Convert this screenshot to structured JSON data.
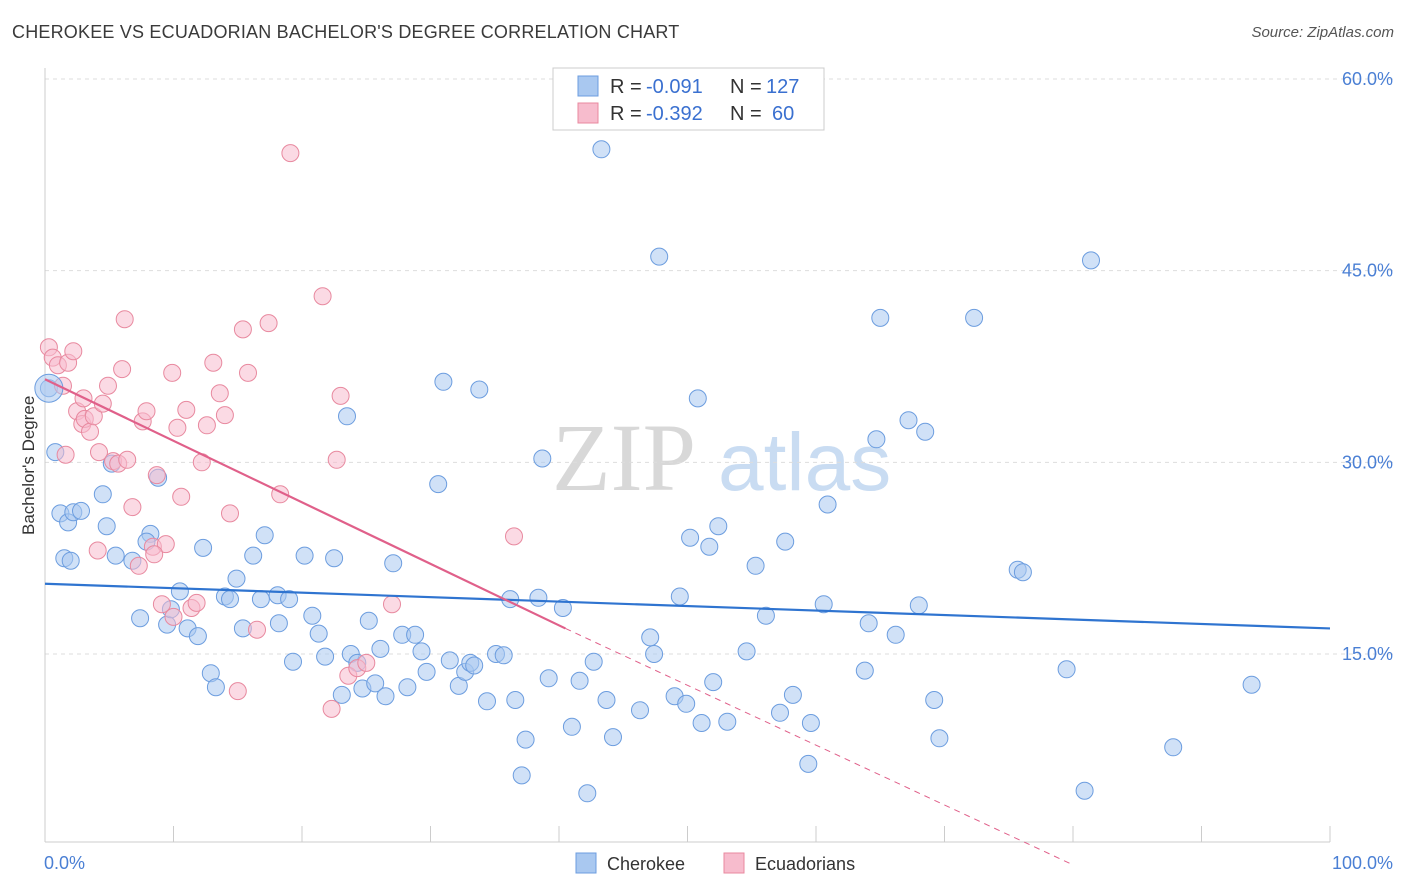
{
  "title": "CHEROKEE VS ECUADORIAN BACHELOR'S DEGREE CORRELATION CHART",
  "source": "Source: ZipAtlas.com",
  "watermark": {
    "zip": "ZIP",
    "atlas": "atlas"
  },
  "colors": {
    "cherokee_fill": "#a9c8f0",
    "cherokee_stroke": "#6c9ddf",
    "cherokee_line": "#2f74d0",
    "ecuador_fill": "#f7bccd",
    "ecuador_stroke": "#e8899f",
    "ecuador_line": "#e0608a",
    "grid": "#dddddd",
    "tick_label": "#4a7fd4"
  },
  "legend": {
    "rows": [
      {
        "r_label": "R =",
        "r_value": "-0.091",
        "n_label": "N =",
        "n_value": "127"
      },
      {
        "r_label": "R =",
        "r_value": "-0.392",
        "n_label": "N =",
        "n_value": "60"
      }
    ]
  },
  "bottom_legend": {
    "series1": "Cherokee",
    "series2": "Ecuadorians"
  },
  "chart_data": {
    "type": "scatter",
    "xlabel": "",
    "ylabel": "Bachelor's Degree",
    "xlim": [
      0,
      100
    ],
    "ylim": [
      0,
      62
    ],
    "x_tick_labels": {
      "min": "0.0%",
      "max": "100.0%"
    },
    "y_ticks": [
      {
        "value": 15,
        "label": "15.0%"
      },
      {
        "value": 30,
        "label": "30.0%"
      },
      {
        "value": 45,
        "label": "45.0%"
      },
      {
        "value": 60,
        "label": "60.0%"
      }
    ],
    "series": [
      {
        "name": "Cherokee",
        "trend": {
          "x": [
            0,
            100
          ],
          "y": [
            20.5,
            17.0
          ]
        },
        "points": [
          [
            0.3,
            35.8
          ],
          [
            0.8,
            30.8
          ],
          [
            1.2,
            26.0
          ],
          [
            1.8,
            25.3
          ],
          [
            2.2,
            26.1
          ],
          [
            2.8,
            26.2
          ],
          [
            1.5,
            22.5
          ],
          [
            2.0,
            22.3
          ],
          [
            4.5,
            27.5
          ],
          [
            5.2,
            29.9
          ],
          [
            5.5,
            22.7
          ],
          [
            4.8,
            25.0
          ],
          [
            6.8,
            22.3
          ],
          [
            8.2,
            24.4
          ],
          [
            7.9,
            23.8
          ],
          [
            8.8,
            28.8
          ],
          [
            7.4,
            17.8
          ],
          [
            9.5,
            17.3
          ],
          [
            9.8,
            18.5
          ],
          [
            10.5,
            19.9
          ],
          [
            11.1,
            17.0
          ],
          [
            11.9,
            16.4
          ],
          [
            12.3,
            23.3
          ],
          [
            12.9,
            13.5
          ],
          [
            13.3,
            12.4
          ],
          [
            14.0,
            19.5
          ],
          [
            14.4,
            19.3
          ],
          [
            14.9,
            20.9
          ],
          [
            15.4,
            17.0
          ],
          [
            16.2,
            22.7
          ],
          [
            16.8,
            19.3
          ],
          [
            17.1,
            24.3
          ],
          [
            18.1,
            19.6
          ],
          [
            18.2,
            17.4
          ],
          [
            19.0,
            19.3
          ],
          [
            19.3,
            14.4
          ],
          [
            20.2,
            22.7
          ],
          [
            20.8,
            18.0
          ],
          [
            21.3,
            16.6
          ],
          [
            21.8,
            14.8
          ],
          [
            22.5,
            22.5
          ],
          [
            23.1,
            11.8
          ],
          [
            23.5,
            33.6
          ],
          [
            23.8,
            15.0
          ],
          [
            24.3,
            14.3
          ],
          [
            24.7,
            12.3
          ],
          [
            25.2,
            17.6
          ],
          [
            25.7,
            12.7
          ],
          [
            26.1,
            15.4
          ],
          [
            26.5,
            11.7
          ],
          [
            27.1,
            22.1
          ],
          [
            27.8,
            16.5
          ],
          [
            28.2,
            12.4
          ],
          [
            28.8,
            16.5
          ],
          [
            29.3,
            15.2
          ],
          [
            29.7,
            13.6
          ],
          [
            30.6,
            28.3
          ],
          [
            31.0,
            36.3
          ],
          [
            31.5,
            14.5
          ],
          [
            32.2,
            12.5
          ],
          [
            32.7,
            13.6
          ],
          [
            33.1,
            14.3
          ],
          [
            33.4,
            14.1
          ],
          [
            33.8,
            35.7
          ],
          [
            34.4,
            11.3
          ],
          [
            35.1,
            15.0
          ],
          [
            35.7,
            14.9
          ],
          [
            36.2,
            19.3
          ],
          [
            36.6,
            11.4
          ],
          [
            37.1,
            5.5
          ],
          [
            37.4,
            8.3
          ],
          [
            38.4,
            19.4
          ],
          [
            38.7,
            30.3
          ],
          [
            39.2,
            13.1
          ],
          [
            40.3,
            18.6
          ],
          [
            41.0,
            9.3
          ],
          [
            41.6,
            12.9
          ],
          [
            42.2,
            4.1
          ],
          [
            42.7,
            14.4
          ],
          [
            43.3,
            54.5
          ],
          [
            43.7,
            11.4
          ],
          [
            44.2,
            8.5
          ],
          [
            46.3,
            10.6
          ],
          [
            47.1,
            16.3
          ],
          [
            47.4,
            15.0
          ],
          [
            47.8,
            46.1
          ],
          [
            49.0,
            11.7
          ],
          [
            49.4,
            19.5
          ],
          [
            49.9,
            11.1
          ],
          [
            50.2,
            24.1
          ],
          [
            50.8,
            35.0
          ],
          [
            51.1,
            9.6
          ],
          [
            51.7,
            23.4
          ],
          [
            52.0,
            12.8
          ],
          [
            52.4,
            25.0
          ],
          [
            53.1,
            9.7
          ],
          [
            54.6,
            15.2
          ],
          [
            55.3,
            21.9
          ],
          [
            56.1,
            18.0
          ],
          [
            57.2,
            10.4
          ],
          [
            57.6,
            23.8
          ],
          [
            58.2,
            11.8
          ],
          [
            59.4,
            6.4
          ],
          [
            59.6,
            9.6
          ],
          [
            60.6,
            18.9
          ],
          [
            60.9,
            26.7
          ],
          [
            63.8,
            13.7
          ],
          [
            64.1,
            17.4
          ],
          [
            64.7,
            31.8
          ],
          [
            65.0,
            41.3
          ],
          [
            66.2,
            16.5
          ],
          [
            67.2,
            33.3
          ],
          [
            68.0,
            18.8
          ],
          [
            68.5,
            32.4
          ],
          [
            69.2,
            11.4
          ],
          [
            69.6,
            8.4
          ],
          [
            72.3,
            41.3
          ],
          [
            75.7,
            21.6
          ],
          [
            76.1,
            21.4
          ],
          [
            79.5,
            13.8
          ],
          [
            80.9,
            4.3
          ],
          [
            81.4,
            45.8
          ],
          [
            87.8,
            7.7
          ],
          [
            93.9,
            12.6
          ]
        ]
      },
      {
        "name": "Ecuadorians",
        "trend": {
          "x": [
            0,
            40.5
          ],
          "y": [
            36.5,
            17.0
          ]
        },
        "trend_dashed": {
          "x": [
            40.5,
            80
          ],
          "y": [
            17.0,
            -1.5
          ]
        },
        "points": [
          [
            0.3,
            39.0
          ],
          [
            0.6,
            38.2
          ],
          [
            1.0,
            37.6
          ],
          [
            1.4,
            36.0
          ],
          [
            1.8,
            37.8
          ],
          [
            2.2,
            38.7
          ],
          [
            2.5,
            34.0
          ],
          [
            2.9,
            33.0
          ],
          [
            3.1,
            33.4
          ],
          [
            3.5,
            32.4
          ],
          [
            3.8,
            33.6
          ],
          [
            4.2,
            30.8
          ],
          [
            4.5,
            34.6
          ],
          [
            4.9,
            36.0
          ],
          [
            5.3,
            30.1
          ],
          [
            5.7,
            29.9
          ],
          [
            6.0,
            37.3
          ],
          [
            6.4,
            30.2
          ],
          [
            6.8,
            26.5
          ],
          [
            7.3,
            21.9
          ],
          [
            7.6,
            33.2
          ],
          [
            7.9,
            34.0
          ],
          [
            8.4,
            23.4
          ],
          [
            8.7,
            29.0
          ],
          [
            9.1,
            18.9
          ],
          [
            9.4,
            23.6
          ],
          [
            9.9,
            37.0
          ],
          [
            10.3,
            32.7
          ],
          [
            10.6,
            27.3
          ],
          [
            11.0,
            34.1
          ],
          [
            11.4,
            18.6
          ],
          [
            11.8,
            19.0
          ],
          [
            12.2,
            30.0
          ],
          [
            12.6,
            32.9
          ],
          [
            13.1,
            37.8
          ],
          [
            13.6,
            35.4
          ],
          [
            14.0,
            33.7
          ],
          [
            14.4,
            26.0
          ],
          [
            15.0,
            12.1
          ],
          [
            15.4,
            40.4
          ],
          [
            15.8,
            37.0
          ],
          [
            16.5,
            16.9
          ],
          [
            17.4,
            40.9
          ],
          [
            18.3,
            27.5
          ],
          [
            19.1,
            54.2
          ],
          [
            21.6,
            43.0
          ],
          [
            22.3,
            10.7
          ],
          [
            22.7,
            30.2
          ],
          [
            23.0,
            35.2
          ],
          [
            23.6,
            13.3
          ],
          [
            24.3,
            13.9
          ],
          [
            25.0,
            14.3
          ],
          [
            27.0,
            18.9
          ],
          [
            36.5,
            24.2
          ],
          [
            4.1,
            23.1
          ],
          [
            8.5,
            22.8
          ],
          [
            10.0,
            17.9
          ],
          [
            1.6,
            30.6
          ],
          [
            3.0,
            35.0
          ],
          [
            6.2,
            41.2
          ]
        ]
      }
    ]
  }
}
